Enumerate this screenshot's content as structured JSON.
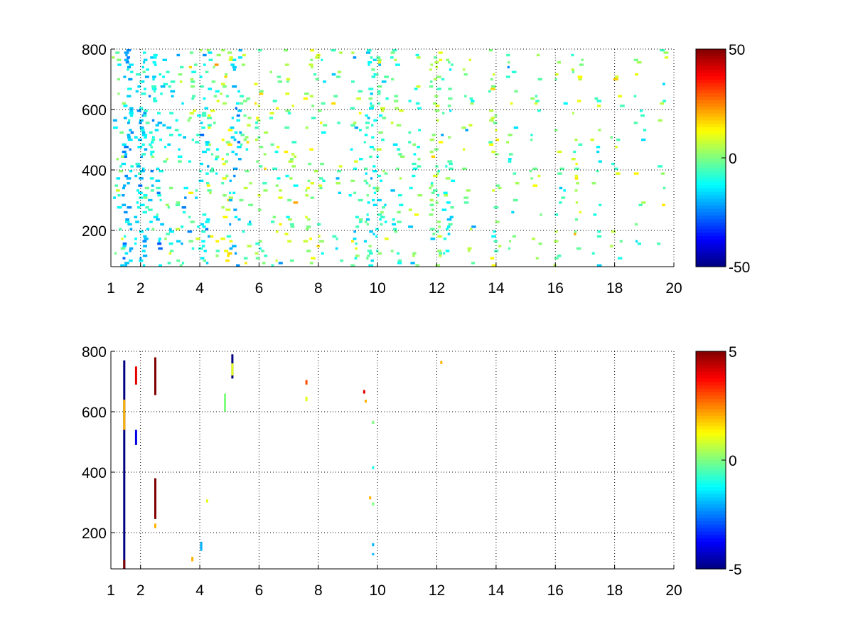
{
  "chart_data": [
    {
      "type": "heatmap",
      "title": "",
      "xlabel": "",
      "ylabel": "",
      "xlim": [
        1,
        20
      ],
      "ylim": [
        80,
        800
      ],
      "x_ticks": [
        1,
        2,
        4,
        6,
        8,
        10,
        12,
        14,
        16,
        18,
        20
      ],
      "y_ticks": [
        200,
        400,
        600,
        800
      ],
      "grid": true,
      "colormap": "jet",
      "colorbar": {
        "min": -50,
        "max": 50,
        "ticks": [
          50,
          0,
          -50
        ]
      },
      "columns": [
        {
          "x": 1.2,
          "density": 0.25,
          "mean": -5,
          "spread": 10
        },
        {
          "x": 1.5,
          "density": 0.6,
          "mean": -18,
          "spread": 6
        },
        {
          "x": 1.95,
          "density": 0.5,
          "mean": -15,
          "spread": 8
        },
        {
          "x": 2.2,
          "density": 0.35,
          "mean": -12,
          "spread": 10
        },
        {
          "x": 2.5,
          "density": 0.45,
          "mean": -14,
          "spread": 10
        },
        {
          "x": 2.9,
          "density": 0.35,
          "mean": -10,
          "spread": 12
        },
        {
          "x": 3.3,
          "density": 0.3,
          "mean": -8,
          "spread": 12
        },
        {
          "x": 3.75,
          "density": 0.35,
          "mean": -5,
          "spread": 14
        },
        {
          "x": 4.1,
          "density": 0.45,
          "mean": -12,
          "spread": 10
        },
        {
          "x": 4.4,
          "density": 0.3,
          "mean": 0,
          "spread": 12
        },
        {
          "x": 4.85,
          "density": 0.45,
          "mean": 5,
          "spread": 10
        },
        {
          "x": 5.15,
          "density": 0.4,
          "mean": -20,
          "spread": 6
        },
        {
          "x": 5.5,
          "density": 0.25,
          "mean": -2,
          "spread": 12
        },
        {
          "x": 6.0,
          "density": 0.35,
          "mean": 2,
          "spread": 10
        },
        {
          "x": 6.5,
          "density": 0.2,
          "mean": -2,
          "spread": 12
        },
        {
          "x": 7.0,
          "density": 0.3,
          "mean": 3,
          "spread": 10
        },
        {
          "x": 7.6,
          "density": 0.3,
          "mean": 5,
          "spread": 10
        },
        {
          "x": 8.0,
          "density": 0.2,
          "mean": 0,
          "spread": 10
        },
        {
          "x": 8.6,
          "density": 0.3,
          "mean": -2,
          "spread": 12
        },
        {
          "x": 9.2,
          "density": 0.35,
          "mean": -4,
          "spread": 10
        },
        {
          "x": 9.7,
          "density": 0.5,
          "mean": -10,
          "spread": 8
        },
        {
          "x": 10.1,
          "density": 0.4,
          "mean": -6,
          "spread": 10
        },
        {
          "x": 10.6,
          "density": 0.3,
          "mean": -5,
          "spread": 10
        },
        {
          "x": 11.2,
          "density": 0.3,
          "mean": -4,
          "spread": 10
        },
        {
          "x": 11.9,
          "density": 0.45,
          "mean": 2,
          "spread": 10
        },
        {
          "x": 12.3,
          "density": 0.3,
          "mean": -8,
          "spread": 10
        },
        {
          "x": 13.0,
          "density": 0.25,
          "mean": -3,
          "spread": 10
        },
        {
          "x": 13.9,
          "density": 0.3,
          "mean": 2,
          "spread": 10
        },
        {
          "x": 14.5,
          "density": 0.2,
          "mean": -4,
          "spread": 10
        },
        {
          "x": 15.3,
          "density": 0.2,
          "mean": 0,
          "spread": 10
        },
        {
          "x": 16.1,
          "density": 0.25,
          "mean": -3,
          "spread": 10
        },
        {
          "x": 16.7,
          "density": 0.3,
          "mean": 0,
          "spread": 10
        },
        {
          "x": 17.3,
          "density": 0.2,
          "mean": -4,
          "spread": 10
        },
        {
          "x": 18.0,
          "density": 0.2,
          "mean": 2,
          "spread": 10
        },
        {
          "x": 18.8,
          "density": 0.2,
          "mean": -3,
          "spread": 10
        },
        {
          "x": 19.6,
          "density": 0.2,
          "mean": 0,
          "spread": 10
        }
      ]
    },
    {
      "type": "heatmap",
      "title": "",
      "xlabel": "",
      "ylabel": "",
      "xlim": [
        1,
        20
      ],
      "ylim": [
        80,
        800
      ],
      "x_ticks": [
        1,
        2,
        4,
        6,
        8,
        10,
        12,
        14,
        16,
        18,
        20
      ],
      "y_ticks": [
        200,
        400,
        600,
        800
      ],
      "grid": true,
      "colormap": "jet",
      "colorbar": {
        "min": -5,
        "max": 5,
        "ticks": [
          5,
          0,
          -5
        ]
      },
      "segments": [
        {
          "x": 1.45,
          "y0": 80,
          "y1": 770,
          "value": -5
        },
        {
          "x": 1.45,
          "y0": 80,
          "y1": 110,
          "value": 5
        },
        {
          "x": 1.45,
          "y0": 540,
          "y1": 640,
          "value": 2
        },
        {
          "x": 1.85,
          "y0": 690,
          "y1": 750,
          "value": 4
        },
        {
          "x": 1.85,
          "y0": 490,
          "y1": 540,
          "value": -4
        },
        {
          "x": 2.5,
          "y0": 655,
          "y1": 780,
          "value": 5
        },
        {
          "x": 2.5,
          "y0": 245,
          "y1": 380,
          "value": 5
        },
        {
          "x": 2.5,
          "y0": 215,
          "y1": 230,
          "value": 2
        },
        {
          "x": 3.75,
          "y0": 105,
          "y1": 120,
          "value": 2
        },
        {
          "x": 4.05,
          "y0": 140,
          "y1": 170,
          "value": -2
        },
        {
          "x": 4.25,
          "y0": 300,
          "y1": 310,
          "value": 1
        },
        {
          "x": 4.85,
          "y0": 600,
          "y1": 660,
          "value": 0
        },
        {
          "x": 5.1,
          "y0": 710,
          "y1": 790,
          "value": -5
        },
        {
          "x": 5.1,
          "y0": 720,
          "y1": 760,
          "value": 1
        },
        {
          "x": 7.6,
          "y0": 690,
          "y1": 705,
          "value": 3
        },
        {
          "x": 7.6,
          "y0": 635,
          "y1": 650,
          "value": 1
        },
        {
          "x": 9.55,
          "y0": 660,
          "y1": 672,
          "value": 4
        },
        {
          "x": 9.6,
          "y0": 630,
          "y1": 640,
          "value": 2
        },
        {
          "x": 9.75,
          "y0": 310,
          "y1": 320,
          "value": 2
        },
        {
          "x": 9.85,
          "y0": 560,
          "y1": 570,
          "value": 0
        },
        {
          "x": 9.85,
          "y0": 410,
          "y1": 420,
          "value": -1
        },
        {
          "x": 9.85,
          "y0": 290,
          "y1": 300,
          "value": 0
        },
        {
          "x": 9.85,
          "y0": 155,
          "y1": 165,
          "value": -2
        },
        {
          "x": 9.85,
          "y0": 125,
          "y1": 132,
          "value": -2
        },
        {
          "x": 12.15,
          "y0": 758,
          "y1": 768,
          "value": 2
        }
      ]
    }
  ]
}
